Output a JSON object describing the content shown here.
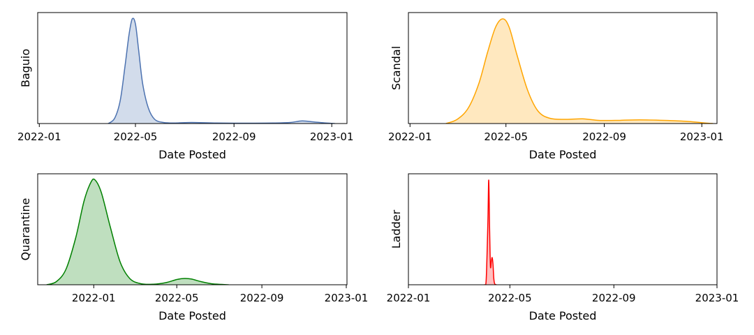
{
  "chart_data": [
    {
      "type": "area",
      "ylabel": "Baguio",
      "xlabel": "Date Posted",
      "x_ticks": [
        "2022-01",
        "2022-05",
        "2022-09",
        "2023-01"
      ],
      "xlim": [
        "2021-12-30",
        "2023-01-20"
      ],
      "ylim": [
        0,
        1.06
      ],
      "color": "#4c72b0",
      "series": [
        {
          "x": [
            "2022-03-28",
            "2022-04-05",
            "2022-04-12",
            "2022-04-18",
            "2022-04-23",
            "2022-04-27",
            "2022-05-01",
            "2022-05-05",
            "2022-05-10",
            "2022-05-17",
            "2022-05-25",
            "2022-06-05",
            "2022-06-20",
            "2022-07-10",
            "2022-08-10",
            "2022-09-15",
            "2022-10-20",
            "2022-11-10",
            "2022-11-25",
            "2022-12-10",
            "2022-12-25",
            "2023-01-05"
          ],
          "y": [
            0.0,
            0.05,
            0.22,
            0.55,
            0.85,
            1.0,
            0.95,
            0.7,
            0.38,
            0.15,
            0.04,
            0.01,
            0.005,
            0.01,
            0.005,
            0.003,
            0.005,
            0.01,
            0.025,
            0.015,
            0.005,
            0.0
          ]
        }
      ]
    },
    {
      "type": "area",
      "ylabel": "Scandal",
      "xlabel": "Date Posted",
      "x_ticks": [
        "2022-01",
        "2022-05",
        "2022-09",
        "2023-01"
      ],
      "xlim": [
        "2021-12-30",
        "2023-01-20"
      ],
      "ylim": [
        0,
        1.06
      ],
      "color": "#ffa500",
      "series": [
        {
          "x": [
            "2022-02-15",
            "2022-03-01",
            "2022-03-15",
            "2022-03-28",
            "2022-04-08",
            "2022-04-18",
            "2022-04-27",
            "2022-05-05",
            "2022-05-15",
            "2022-05-28",
            "2022-06-10",
            "2022-06-25",
            "2022-07-15",
            "2022-08-05",
            "2022-08-25",
            "2022-09-15",
            "2022-10-15",
            "2022-11-15",
            "2022-12-15",
            "2023-01-05",
            "2023-01-15"
          ],
          "y": [
            0.0,
            0.04,
            0.15,
            0.38,
            0.68,
            0.92,
            1.0,
            0.92,
            0.65,
            0.32,
            0.12,
            0.05,
            0.04,
            0.045,
            0.03,
            0.03,
            0.035,
            0.03,
            0.02,
            0.005,
            0.0
          ]
        }
      ]
    },
    {
      "type": "area",
      "ylabel": "Quarantine",
      "xlabel": "Date Posted",
      "x_ticks": [
        "2022-01",
        "2022-05",
        "2022-09",
        "2023-01"
      ],
      "xlim": [
        "2021-10-12",
        "2023-01-02"
      ],
      "ylim": [
        0,
        1.06
      ],
      "color": "#008000",
      "series": [
        {
          "x": [
            "2021-10-25",
            "2021-11-08",
            "2021-11-22",
            "2021-12-06",
            "2021-12-18",
            "2021-12-28",
            "2022-01-03",
            "2022-01-12",
            "2022-01-25",
            "2022-02-08",
            "2022-02-22",
            "2022-03-10",
            "2022-03-28",
            "2022-04-15",
            "2022-05-01",
            "2022-05-12",
            "2022-05-22",
            "2022-06-05",
            "2022-06-20",
            "2022-07-05",
            "2022-07-15"
          ],
          "y": [
            0.0,
            0.03,
            0.15,
            0.45,
            0.8,
            0.98,
            1.0,
            0.88,
            0.55,
            0.22,
            0.06,
            0.01,
            0.005,
            0.02,
            0.05,
            0.06,
            0.055,
            0.03,
            0.01,
            0.003,
            0.0
          ]
        }
      ]
    },
    {
      "type": "area",
      "ylabel": "Ladder",
      "xlabel": "Date Posted",
      "x_ticks": [
        "2022-01",
        "2022-05",
        "2022-09",
        "2023-01"
      ],
      "xlim": [
        "2022-01-01",
        "2023-01-01"
      ],
      "ylim": [
        0,
        1.06
      ],
      "color": "#ff0000",
      "series": [
        {
          "x": [
            "2022-04-01",
            "2022-04-03",
            "2022-04-05",
            "2022-04-06",
            "2022-04-07",
            "2022-04-08",
            "2022-04-09",
            "2022-04-10",
            "2022-04-11",
            "2022-04-12",
            "2022-04-13",
            "2022-04-15"
          ],
          "y": [
            0.0,
            0.05,
            0.6,
            1.0,
            0.55,
            0.18,
            0.22,
            0.26,
            0.2,
            0.06,
            0.01,
            0.0
          ]
        }
      ]
    }
  ]
}
